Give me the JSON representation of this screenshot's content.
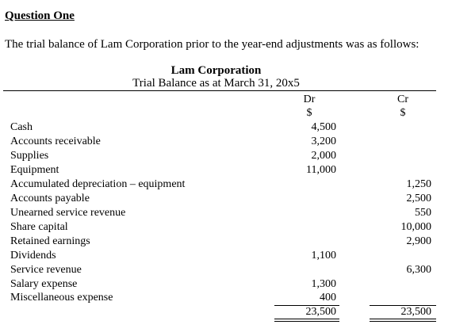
{
  "question": {
    "heading": "Question One",
    "intro": "The trial balance of Lam Corporation prior to the year-end adjustments was as follows:"
  },
  "statement": {
    "company": "Lam Corporation",
    "subtitle": "Trial Balance as at March 31, 20x5",
    "dr_label": "Dr",
    "cr_label": "Cr",
    "dr_currency": "$",
    "cr_currency": "$"
  },
  "rows": [
    {
      "account": "Cash",
      "dr": "4,500",
      "cr": ""
    },
    {
      "account": "Accounts receivable",
      "dr": "3,200",
      "cr": ""
    },
    {
      "account": "Supplies",
      "dr": "2,000",
      "cr": ""
    },
    {
      "account": "Equipment",
      "dr": "11,000",
      "cr": ""
    },
    {
      "account": "Accumulated depreciation – equipment",
      "dr": "",
      "cr": "1,250"
    },
    {
      "account": "Accounts payable",
      "dr": "",
      "cr": "2,500"
    },
    {
      "account": "Unearned service revenue",
      "dr": "",
      "cr": "550"
    },
    {
      "account": "Share capital",
      "dr": "",
      "cr": "10,000"
    },
    {
      "account": "Retained earnings",
      "dr": "",
      "cr": "2,900"
    },
    {
      "account": "Dividends",
      "dr": "1,100",
      "cr": ""
    },
    {
      "account": "Service revenue",
      "dr": "",
      "cr": "6,300"
    },
    {
      "account": "Salary expense",
      "dr": "1,300",
      "cr": ""
    },
    {
      "account": "Miscellaneous expense",
      "dr": "400",
      "cr": ""
    }
  ],
  "totals": {
    "dr": "23,500",
    "cr": "23,500"
  }
}
